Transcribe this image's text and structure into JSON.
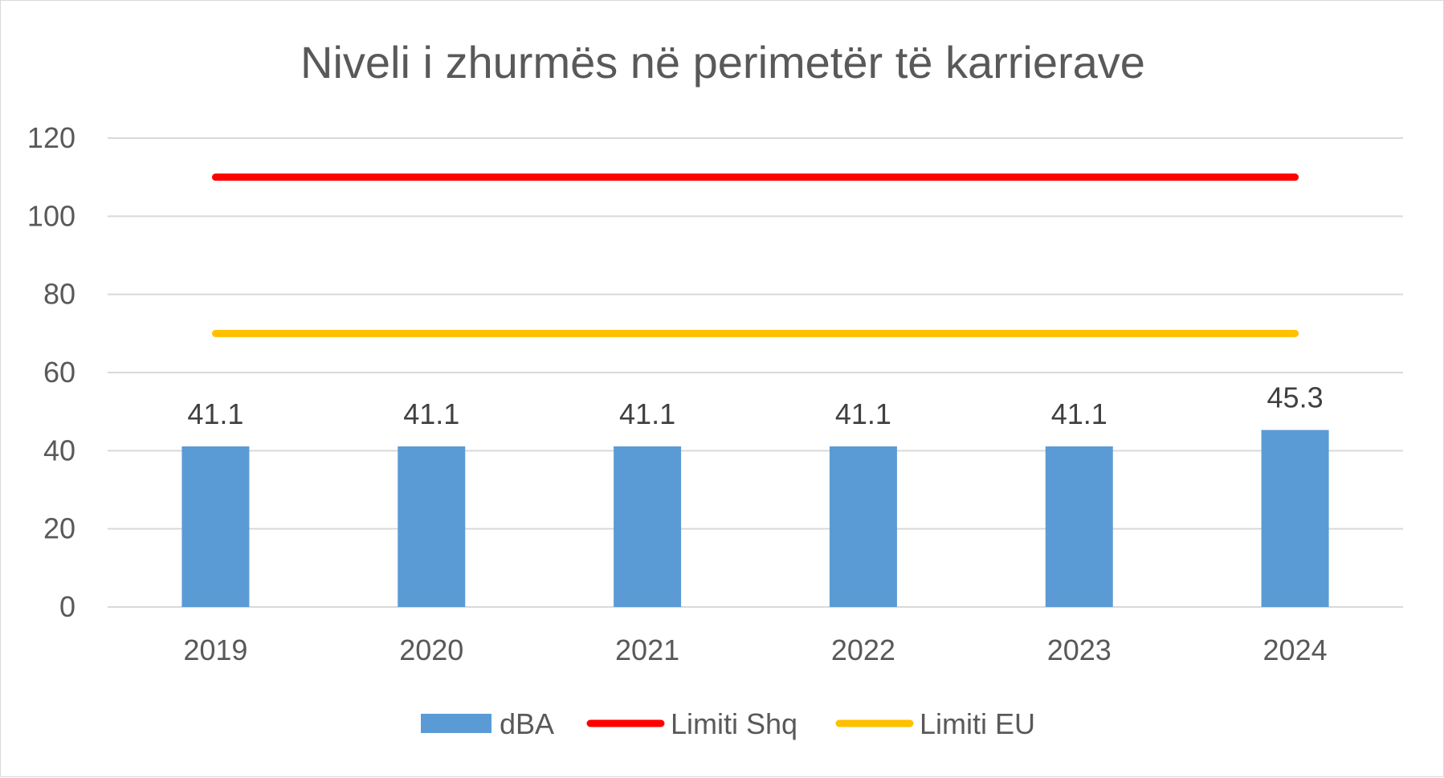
{
  "chart_data": {
    "type": "bar",
    "title": "Niveli i zhurmës në perimetër të karrierave",
    "categories": [
      "2019",
      "2020",
      "2021",
      "2022",
      "2023",
      "2024"
    ],
    "series": [
      {
        "name": "dBA",
        "kind": "bar",
        "color": "#5b9bd5",
        "values": [
          41.1,
          41.1,
          41.1,
          41.1,
          41.1,
          45.3
        ],
        "data_labels": [
          "41.1",
          "41.1",
          "41.1",
          "41.1",
          "41.1",
          "45.3"
        ]
      },
      {
        "name": "Limiti Shq",
        "kind": "line",
        "color": "#ff0000",
        "values": [
          110,
          110,
          110,
          110,
          110,
          110
        ]
      },
      {
        "name": "Limiti EU",
        "kind": "line",
        "color": "#ffc000",
        "values": [
          70,
          70,
          70,
          70,
          70,
          70
        ]
      }
    ],
    "yticks": [
      "0",
      "20",
      "40",
      "60",
      "80",
      "100",
      "120"
    ],
    "ylim": [
      0,
      120
    ],
    "grid": true,
    "legend": "bottom"
  }
}
